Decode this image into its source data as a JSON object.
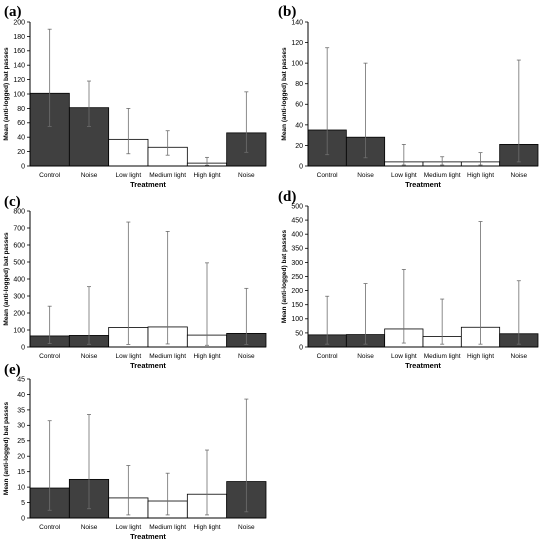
{
  "colors": {
    "noise": "#404040",
    "light": "#ffffff",
    "axis": "#000000",
    "errorbar": "#6e6e6e"
  },
  "chart_data": [
    {
      "panel": "(a)",
      "type": "bar",
      "categories": [
        "Control",
        "Noise",
        "Low light",
        "Medium light",
        "High light",
        "Noise"
      ],
      "fill": [
        "noise",
        "noise",
        "light",
        "light",
        "light",
        "noise"
      ],
      "values": [
        101,
        81,
        37,
        26,
        4,
        46
      ],
      "err_low": [
        55,
        55,
        17,
        15,
        1,
        19
      ],
      "err_high": [
        190,
        118,
        80,
        49,
        12,
        103
      ],
      "ylim": [
        0,
        200
      ],
      "yticks": [
        0,
        20,
        40,
        60,
        80,
        100,
        120,
        140,
        160,
        180,
        200
      ],
      "xlabel": "Treatment",
      "ylabel": "Mean (anti-logged) bat passes"
    },
    {
      "panel": "(b)",
      "type": "bar",
      "categories": [
        "Control",
        "Noise",
        "Low light",
        "Medium light",
        "High light",
        "Noise"
      ],
      "fill": [
        "noise",
        "noise",
        "light",
        "light",
        "light",
        "noise"
      ],
      "values": [
        35,
        28,
        4,
        4,
        4,
        21
      ],
      "err_low": [
        11,
        8,
        1,
        1,
        1,
        4
      ],
      "err_high": [
        115,
        100,
        21,
        9,
        13,
        103
      ],
      "ylim": [
        0,
        140
      ],
      "yticks": [
        0,
        20,
        40,
        60,
        80,
        100,
        120,
        140
      ],
      "xlabel": "Treatment",
      "ylabel": "Mean (anti-logged) bat passes"
    },
    {
      "panel": "(c)",
      "type": "bar",
      "categories": [
        "Control",
        "Noise",
        "Low light",
        "Medium light",
        "High light",
        "Noise"
      ],
      "fill": [
        "noise",
        "noise",
        "light",
        "light",
        "light",
        "noise"
      ],
      "values": [
        65,
        68,
        115,
        118,
        70,
        80
      ],
      "err_low": [
        20,
        16,
        15,
        18,
        10,
        15
      ],
      "err_high": [
        240,
        355,
        735,
        680,
        495,
        345
      ],
      "ylim": [
        0,
        800
      ],
      "yticks": [
        0,
        100,
        200,
        300,
        400,
        500,
        600,
        700,
        800
      ],
      "xlabel": "Treatment",
      "ylabel": "Mean (anti-logged) bat passes"
    },
    {
      "panel": "(d)",
      "type": "bar",
      "categories": [
        "Control",
        "Noise",
        "Low light",
        "Medium light",
        "High light",
        "Noise"
      ],
      "fill": [
        "noise",
        "noise",
        "light",
        "light",
        "light",
        "noise"
      ],
      "values": [
        43,
        44,
        64,
        37,
        70,
        47
      ],
      "err_low": [
        10,
        10,
        14,
        10,
        10,
        10
      ],
      "err_high": [
        180,
        225,
        275,
        170,
        445,
        235
      ],
      "ylim": [
        0,
        500
      ],
      "yticks": [
        0,
        50,
        100,
        150,
        200,
        250,
        300,
        350,
        400,
        450,
        500
      ],
      "xlabel": "Treatment",
      "ylabel": "Mean (anti-logged) bat passes"
    },
    {
      "panel": "(e)",
      "type": "bar",
      "categories": [
        "Control",
        "Noise",
        "Low light",
        "Medium light",
        "High light",
        "Noise"
      ],
      "fill": [
        "noise",
        "noise",
        "light",
        "light",
        "light",
        "noise"
      ],
      "values": [
        9.7,
        12.5,
        6.5,
        5.5,
        7.7,
        11.8
      ],
      "err_low": [
        2.5,
        3,
        1,
        1,
        1,
        2
      ],
      "err_high": [
        31.5,
        33.5,
        17,
        14.5,
        22,
        38.5
      ],
      "ylim": [
        0,
        45
      ],
      "yticks": [
        0,
        5,
        10,
        15,
        20,
        25,
        30,
        35,
        40,
        45
      ],
      "xlabel": "Treatment",
      "ylabel": "Mean (anti-logged) bat passes"
    }
  ]
}
